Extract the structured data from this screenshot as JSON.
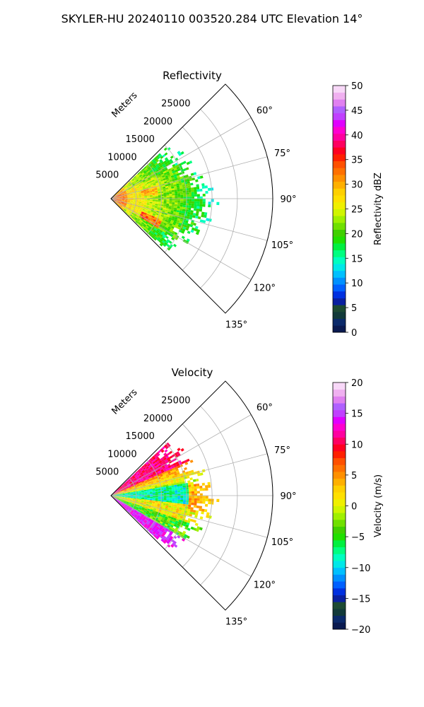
{
  "figure": {
    "suptitle": "SKYLER-HU  20240110  003520.284 UTC Elevation 14°"
  },
  "colors": {
    "reflectivity_scale": [
      "#0a1a50",
      "#0b2a6a",
      "#123a3a",
      "#1d4a33",
      "#0a20a0",
      "#0030e0",
      "#0060ff",
      "#0090ff",
      "#00c0ff",
      "#00e8e8",
      "#00ffc0",
      "#00ff80",
      "#00f040",
      "#20e000",
      "#40d000",
      "#70e000",
      "#a0f000",
      "#d0f500",
      "#f0f000",
      "#ffe000",
      "#ffd000",
      "#ffb000",
      "#ff9000",
      "#ff7000",
      "#ff5000",
      "#ff2000",
      "#ff0020",
      "#ff0060",
      "#ff00a0",
      "#ff00d0",
      "#e000ff",
      "#c040ff",
      "#b060ff",
      "#e080f0",
      "#f0b0f0",
      "#f8d8f8"
    ],
    "velocity_scale": [
      "#0a1a50",
      "#0b2a6a",
      "#123a3a",
      "#1d4a33",
      "#0a20a0",
      "#0030e0",
      "#0060ff",
      "#0090ff",
      "#00c0ff",
      "#00e8e8",
      "#00ffc0",
      "#00ff80",
      "#00f040",
      "#20e000",
      "#40d000",
      "#70e000",
      "#a0f000",
      "#d0f500",
      "#f0f000",
      "#ffe000",
      "#ffd000",
      "#ffb000",
      "#ff9000",
      "#ff7000",
      "#ff5000",
      "#ff2000",
      "#ff0020",
      "#ff0060",
      "#ff00a0",
      "#ff00d0",
      "#e000ff",
      "#c040ff",
      "#b060ff",
      "#e080f0",
      "#f0b0f0",
      "#f8d8f8"
    ]
  },
  "chart_data": [
    {
      "type": "heatmap",
      "projection": "polar-sector",
      "title": "Reflectivity",
      "radial_label": "Meters",
      "radial_ticks": [
        5000,
        10000,
        15000,
        20000,
        25000
      ],
      "radial_tick_labels": [
        "5000",
        "10000",
        "15000",
        "20000",
        "25000"
      ],
      "rlim": [
        0,
        32000
      ],
      "angle_range_deg": [
        45,
        135
      ],
      "angle_ticks": [
        60,
        75,
        90,
        105,
        120,
        135
      ],
      "angle_tick_labels": [
        "60°",
        "75°",
        "90°",
        "105°",
        "120°",
        "135°"
      ],
      "data_extent_m": 20000,
      "grid": true,
      "colorbar": {
        "label": "Reflectivity dBZ",
        "vmin": 0,
        "vmax": 50,
        "ticks": [
          0,
          5,
          10,
          15,
          20,
          25,
          30,
          35,
          40,
          45,
          50
        ],
        "tick_labels": [
          "0",
          "5",
          "10",
          "15",
          "20",
          "25",
          "30",
          "35",
          "40",
          "45",
          "50"
        ]
      }
    },
    {
      "type": "heatmap",
      "projection": "polar-sector",
      "title": "Velocity",
      "radial_label": "Meters",
      "radial_ticks": [
        5000,
        10000,
        15000,
        20000,
        25000
      ],
      "radial_tick_labels": [
        "5000",
        "10000",
        "15000",
        "20000",
        "25000"
      ],
      "rlim": [
        0,
        32000
      ],
      "angle_range_deg": [
        45,
        135
      ],
      "angle_ticks": [
        60,
        75,
        90,
        105,
        120,
        135
      ],
      "angle_tick_labels": [
        "60°",
        "75°",
        "90°",
        "105°",
        "120°",
        "135°"
      ],
      "data_extent_m": 20000,
      "grid": true,
      "colorbar": {
        "label": "Velocity (m/s)",
        "vmin": -20,
        "vmax": 20,
        "ticks": [
          -20,
          -15,
          -10,
          -5,
          0,
          5,
          10,
          15,
          20
        ],
        "tick_labels": [
          "−20",
          "−15",
          "−10",
          "−5",
          "0",
          "5",
          "10",
          "15",
          "20"
        ]
      }
    }
  ]
}
